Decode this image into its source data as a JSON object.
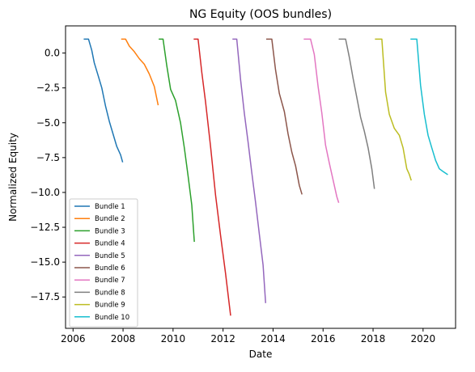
{
  "chart_data": {
    "type": "line",
    "title": "NG Equity (OOS bundles)",
    "xlabel": "Date",
    "ylabel": "Normalized Equity",
    "xlim": [
      2005.7,
      2021.3
    ],
    "ylim": [
      -19.75,
      1.95
    ],
    "x_ticks": [
      2006,
      2008,
      2010,
      2012,
      2014,
      2016,
      2018,
      2020
    ],
    "x_tick_labels": [
      "2006",
      "2008",
      "2010",
      "2012",
      "2014",
      "2016",
      "2018",
      "2020"
    ],
    "y_ticks": [
      0,
      -2.5,
      -5,
      -7.5,
      -10,
      -12.5,
      -15,
      -17.5
    ],
    "y_tick_labels": [
      "0.0",
      "−2.5",
      "−5.0",
      "−7.5",
      "−10.0",
      "−12.5",
      "−15.0",
      "−17.5"
    ],
    "grid": false,
    "legend_position": "lower-left",
    "series": [
      {
        "name": "Bundle 1",
        "color": "#1f77b4",
        "x": [
          2006.45,
          2006.62,
          2006.75,
          2006.85,
          2007.0,
          2007.15,
          2007.3,
          2007.45,
          2007.6,
          2007.75,
          2007.9,
          2007.98
        ],
        "y": [
          1.0,
          1.0,
          0.2,
          -0.7,
          -1.6,
          -2.5,
          -3.8,
          -4.9,
          -5.8,
          -6.7,
          -7.3,
          -7.8
        ]
      },
      {
        "name": "Bundle 2",
        "color": "#ff7f0e",
        "x": [
          2007.95,
          2008.1,
          2008.25,
          2008.45,
          2008.65,
          2008.85,
          2009.05,
          2009.25,
          2009.4
        ],
        "y": [
          1.0,
          1.0,
          0.5,
          0.1,
          -0.4,
          -0.8,
          -1.5,
          -2.4,
          -3.7
        ]
      },
      {
        "name": "Bundle 3",
        "color": "#2ca02c",
        "x": [
          2009.45,
          2009.6,
          2009.75,
          2009.9,
          2010.1,
          2010.3,
          2010.45,
          2010.6,
          2010.75,
          2010.85
        ],
        "y": [
          1.0,
          1.0,
          -0.9,
          -2.6,
          -3.4,
          -5.0,
          -6.8,
          -8.8,
          -10.9,
          -13.5
        ]
      },
      {
        "name": "Bundle 4",
        "color": "#d62728",
        "x": [
          2010.85,
          2011.0,
          2011.15,
          2011.3,
          2011.5,
          2011.7,
          2011.9,
          2012.1,
          2012.3
        ],
        "y": [
          1.0,
          1.0,
          -1.4,
          -3.5,
          -6.7,
          -10.2,
          -13.1,
          -15.8,
          -18.8
        ]
      },
      {
        "name": "Bundle 5",
        "color": "#9467bd",
        "x": [
          2012.4,
          2012.55,
          2012.7,
          2012.85,
          2013.0,
          2013.15,
          2013.3,
          2013.45,
          2013.6,
          2013.7
        ],
        "y": [
          1.0,
          1.0,
          -1.9,
          -4.3,
          -6.4,
          -8.6,
          -10.7,
          -13.0,
          -15.2,
          -17.9
        ]
      },
      {
        "name": "Bundle 6",
        "color": "#8c564b",
        "x": [
          2013.75,
          2013.95,
          2014.1,
          2014.25,
          2014.45,
          2014.6,
          2014.75,
          2014.9,
          2015.05,
          2015.15
        ],
        "y": [
          1.0,
          1.0,
          -1.2,
          -2.9,
          -4.2,
          -5.8,
          -7.1,
          -8.1,
          -9.5,
          -10.1
        ]
      },
      {
        "name": "Bundle 7",
        "color": "#e377c2",
        "x": [
          2015.25,
          2015.5,
          2015.65,
          2015.8,
          2015.95,
          2016.1,
          2016.25,
          2016.4,
          2016.55,
          2016.62
        ],
        "y": [
          1.0,
          1.0,
          -0.1,
          -2.4,
          -4.3,
          -6.6,
          -7.9,
          -9.1,
          -10.3,
          -10.7
        ]
      },
      {
        "name": "Bundle 8",
        "color": "#7f7f7f",
        "x": [
          2016.65,
          2016.9,
          2017.05,
          2017.2,
          2017.35,
          2017.5,
          2017.65,
          2017.8,
          2017.95,
          2018.05
        ],
        "y": [
          1.0,
          1.0,
          -0.3,
          -1.8,
          -3.2,
          -4.6,
          -5.6,
          -6.8,
          -8.3,
          -9.7
        ]
      },
      {
        "name": "Bundle 9",
        "color": "#bcbd22",
        "x": [
          2018.1,
          2018.35,
          2018.5,
          2018.65,
          2018.85,
          2019.05,
          2019.2,
          2019.35,
          2019.45,
          2019.52
        ],
        "y": [
          1.0,
          1.0,
          -2.8,
          -4.4,
          -5.4,
          -5.9,
          -6.8,
          -8.3,
          -8.7,
          -9.1
        ]
      },
      {
        "name": "Bundle 10",
        "color": "#17becf",
        "x": [
          2019.52,
          2019.75,
          2019.9,
          2020.05,
          2020.2,
          2020.35,
          2020.5,
          2020.65,
          2020.8,
          2020.97
        ],
        "y": [
          1.0,
          1.0,
          -2.3,
          -4.4,
          -5.9,
          -6.8,
          -7.7,
          -8.3,
          -8.5,
          -8.7
        ]
      }
    ]
  }
}
